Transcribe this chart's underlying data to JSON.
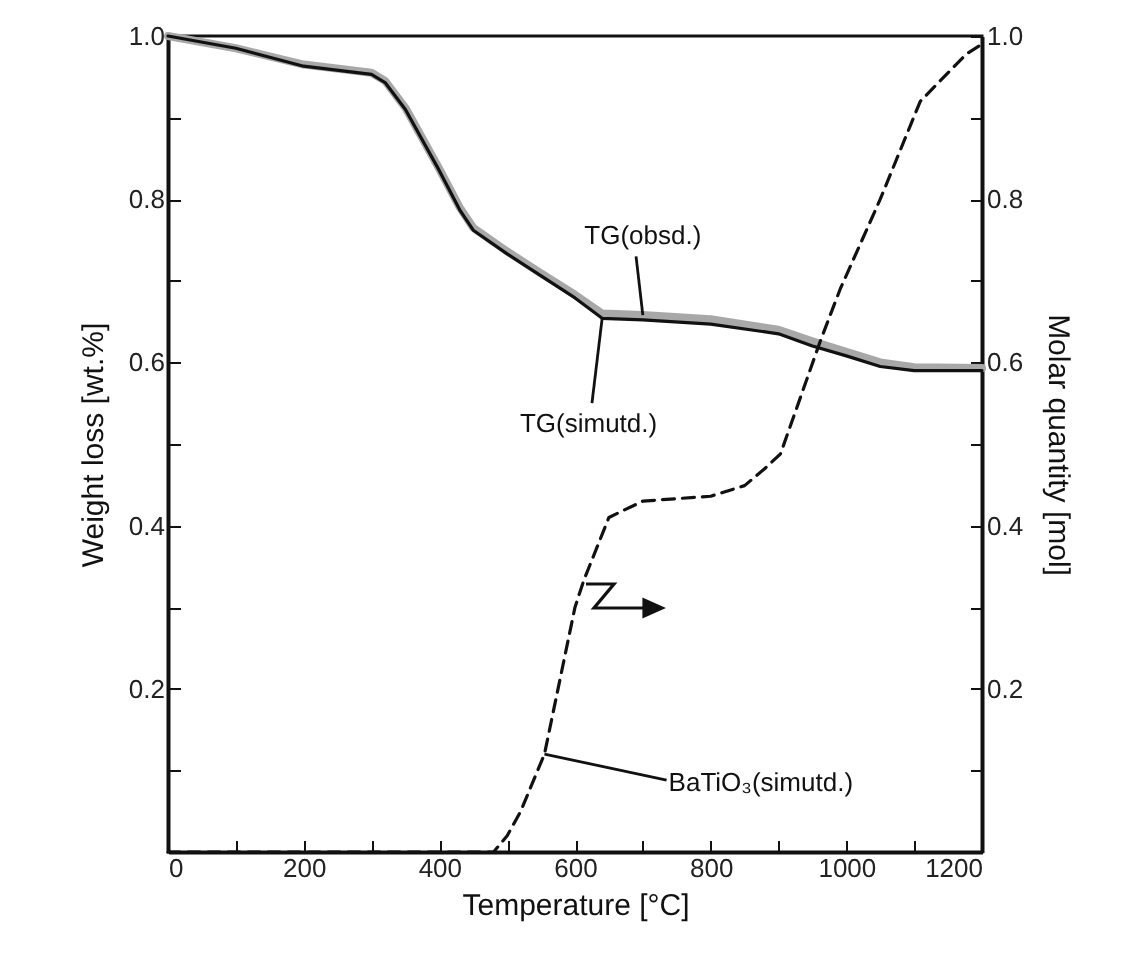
{
  "chart_data": {
    "type": "line",
    "xlabel": "Temperature [°C]",
    "ylabel": "Weight loss [wt.%]",
    "y2label": "Molar quantity [mol]",
    "xlim": [
      0,
      1200
    ],
    "xticks": [
      0,
      {
        "value": 100,
        "label": null
      },
      200,
      {
        "value": 300,
        "label": null
      },
      400,
      {
        "value": 500,
        "label": null
      },
      600,
      {
        "value": 700,
        "label": null
      },
      800,
      {
        "value": 900,
        "label": null
      },
      1000,
      {
        "value": 1100,
        "label": null
      },
      1200
    ],
    "ylim": [
      0,
      1
    ],
    "yticks": [
      {
        "value": 0.1,
        "label": null
      },
      {
        "value": 0.2,
        "label": "0.2"
      },
      {
        "value": 0.3,
        "label": null
      },
      {
        "value": 0.4,
        "label": "0.4"
      },
      {
        "value": 0.5,
        "label": null
      },
      {
        "value": 0.6,
        "label": "0.6"
      },
      {
        "value": 0.7,
        "label": null
      },
      {
        "value": 0.8,
        "label": "0.8"
      },
      {
        "value": 0.9,
        "label": null
      },
      {
        "value": 1,
        "label": "1.0"
      }
    ],
    "y2lim": [
      0,
      1
    ],
    "y2ticks": [
      {
        "value": 0.1,
        "label": null
      },
      {
        "value": 0.2,
        "label": "0.2"
      },
      {
        "value": 0.3,
        "label": null
      },
      {
        "value": 0.4,
        "label": "0.4"
      },
      {
        "value": 0.5,
        "label": null
      },
      {
        "value": 0.6,
        "label": "0.6"
      },
      {
        "value": 0.7,
        "label": null
      },
      {
        "value": 0.8,
        "label": "0.8"
      },
      {
        "value": 0.9,
        "label": null
      },
      {
        "value": 1,
        "label": "1.0"
      }
    ],
    "series": [
      {
        "color": "#a8a8a8",
        "x": [
          0,
          100,
          200,
          300,
          320,
          350,
          400,
          430,
          450,
          500,
          550,
          600,
          640,
          700,
          800,
          900,
          950,
          1000,
          1050,
          1100,
          1200
        ],
        "values": [
          1.0,
          0.985,
          0.965,
          0.955,
          0.945,
          0.912,
          0.837,
          0.79,
          0.765,
          0.736,
          0.709,
          0.683,
          0.66,
          0.658,
          0.653,
          0.64,
          0.626,
          0.613,
          0.6,
          0.594,
          0.593
        ]
      },
      {
        "color": "#111111",
        "x": [
          0,
          100,
          200,
          300,
          320,
          350,
          400,
          430,
          450,
          500,
          550,
          600,
          640,
          700,
          800,
          900,
          950,
          1000,
          1050,
          1100,
          1200
        ],
        "values": [
          1.0,
          0.985,
          0.963,
          0.953,
          0.943,
          0.91,
          0.835,
          0.787,
          0.762,
          0.733,
          0.706,
          0.679,
          0.654,
          0.652,
          0.647,
          0.635,
          0.62,
          0.608,
          0.595,
          0.59,
          0.59
        ]
      },
      {
        "color": "#111111",
        "axis": "y2",
        "line_style": "dashed",
        "x": [
          0,
          480,
          500,
          520,
          555,
          600,
          613,
          650,
          700,
          800,
          850,
          880,
          903,
          962,
          991,
          1050,
          1109,
          1177,
          1200
        ],
        "values": [
          0,
          0,
          0.02,
          0.05,
          0.12,
          0.3,
          0.333,
          0.41,
          0.43,
          0.436,
          0.449,
          0.47,
          0.488,
          0.627,
          0.69,
          0.8,
          0.92,
          0.978,
          0.99
        ]
      }
    ],
    "annotations": [
      {
        "text": "TG(obsd.)",
        "x": 700,
        "y": 0.658
      },
      {
        "text": "TG(simutd.)",
        "x": 640,
        "y": 0.654
      },
      {
        "text": "BaTiO₃(simutd.)",
        "x": 555,
        "y": 0.12
      }
    ]
  }
}
